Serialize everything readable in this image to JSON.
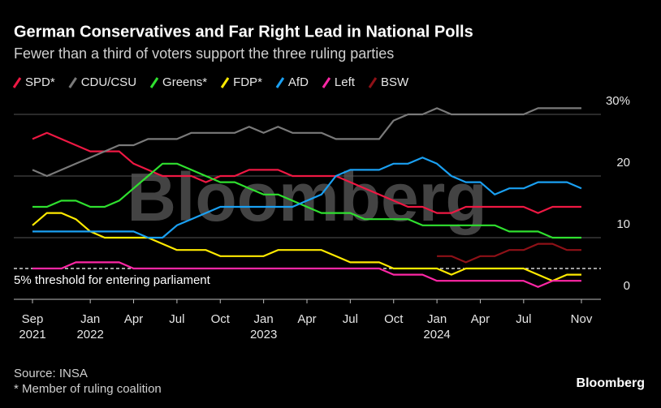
{
  "chart_data": {
    "type": "line",
    "title": "German Conservatives and Far Right Lead in National Polls",
    "subtitle": "Fewer than a third of voters support the three ruling parties",
    "x": [
      "2021-09",
      "2021-10",
      "2021-11",
      "2021-12",
      "2022-01",
      "2022-02",
      "2022-03",
      "2022-04",
      "2022-05",
      "2022-06",
      "2022-07",
      "2022-08",
      "2022-09",
      "2022-10",
      "2022-11",
      "2022-12",
      "2023-01",
      "2023-02",
      "2023-03",
      "2023-04",
      "2023-05",
      "2023-06",
      "2023-07",
      "2023-08",
      "2023-09",
      "2023-10",
      "2023-11",
      "2023-12",
      "2024-01",
      "2024-02",
      "2024-03",
      "2024-04",
      "2024-05",
      "2024-06",
      "2024-07",
      "2024-08",
      "2024-09",
      "2024-10",
      "2024-11"
    ],
    "series": [
      {
        "name": "SPD*",
        "color": "#ee1843",
        "values": [
          26,
          27,
          26,
          25,
          24,
          24,
          24,
          22,
          21,
          20,
          20,
          20,
          19,
          20,
          20,
          21,
          21,
          21,
          20,
          20,
          20,
          20,
          19,
          18,
          17,
          16,
          15,
          15,
          14,
          14,
          15,
          15,
          15,
          15,
          15,
          14,
          15,
          15,
          15
        ]
      },
      {
        "name": "CDU/CSU",
        "color": "#7a7a7a",
        "values": [
          21,
          20,
          21,
          22,
          23,
          24,
          25,
          25,
          26,
          26,
          26,
          27,
          27,
          27,
          27,
          28,
          27,
          28,
          27,
          27,
          27,
          26,
          26,
          26,
          26,
          29,
          30,
          30,
          31,
          30,
          30,
          30,
          30,
          30,
          30,
          31,
          31,
          31,
          31
        ]
      },
      {
        "name": "Greens*",
        "color": "#2fe02f",
        "values": [
          15,
          15,
          16,
          16,
          15,
          15,
          16,
          18,
          20,
          22,
          22,
          21,
          20,
          19,
          19,
          18,
          17,
          17,
          16,
          15,
          14,
          14,
          14,
          13,
          13,
          13,
          13,
          12,
          12,
          12,
          12,
          12,
          12,
          11,
          11,
          11,
          10,
          10,
          10
        ]
      },
      {
        "name": "FDP*",
        "color": "#ffea00",
        "values": [
          12,
          14,
          14,
          13,
          11,
          10,
          10,
          10,
          10,
          9,
          8,
          8,
          8,
          7,
          7,
          7,
          7,
          8,
          8,
          8,
          8,
          7,
          6,
          6,
          6,
          5,
          5,
          5,
          5,
          4,
          5,
          5,
          5,
          5,
          5,
          4,
          3,
          4,
          4
        ]
      },
      {
        "name": "AfD",
        "color": "#1aa0f2",
        "values": [
          11,
          11,
          11,
          11,
          11,
          11,
          11,
          11,
          10,
          10,
          12,
          13,
          14,
          15,
          15,
          15,
          15,
          15,
          15,
          16,
          17,
          20,
          21,
          21,
          21,
          22,
          22,
          23,
          22,
          20,
          19,
          19,
          17,
          18,
          18,
          19,
          19,
          19,
          18
        ]
      },
      {
        "name": "Left",
        "color": "#ff27a6",
        "values": [
          5,
          5,
          5,
          6,
          6,
          6,
          6,
          5,
          5,
          5,
          5,
          5,
          5,
          5,
          5,
          5,
          5,
          5,
          5,
          5,
          5,
          5,
          5,
          5,
          5,
          4,
          4,
          4,
          3,
          3,
          3,
          3,
          3,
          3,
          3,
          2,
          3,
          3,
          3
        ]
      },
      {
        "name": "BSW",
        "color": "#8e1117",
        "values": [
          null,
          null,
          null,
          null,
          null,
          null,
          null,
          null,
          null,
          null,
          null,
          null,
          null,
          null,
          null,
          null,
          null,
          null,
          null,
          null,
          null,
          null,
          null,
          null,
          null,
          null,
          null,
          null,
          7,
          7,
          6,
          7,
          7,
          8,
          8,
          9,
          9,
          8,
          8
        ]
      }
    ],
    "xticks": [
      {
        "value": "2021-09",
        "label": "Sep\n2021"
      },
      {
        "value": "2022-01",
        "label": "Jan\n2022"
      },
      {
        "value": "2022-04",
        "label": "Apr"
      },
      {
        "value": "2022-07",
        "label": "Jul"
      },
      {
        "value": "2022-10",
        "label": "Oct"
      },
      {
        "value": "2023-01",
        "label": "Jan\n2023"
      },
      {
        "value": "2023-04",
        "label": "Apr"
      },
      {
        "value": "2023-07",
        "label": "Jul"
      },
      {
        "value": "2023-10",
        "label": "Oct"
      },
      {
        "value": "2024-01",
        "label": "Jan\n2024"
      },
      {
        "value": "2024-04",
        "label": "Apr"
      },
      {
        "value": "2024-07",
        "label": "Jul"
      },
      {
        "value": "2024-11",
        "label": "Nov"
      }
    ],
    "ylim": [
      0,
      32
    ],
    "yticks": [
      0,
      10,
      20,
      {
        "value": 30,
        "label": "30%"
      }
    ],
    "grid": true,
    "threshold": {
      "value": 5,
      "label": "5% threshold for entering parliament"
    },
    "watermark": "Bloomberg",
    "source": "Source: INSA",
    "footnote": "* Member of ruling coalition",
    "brand": "Bloomberg"
  }
}
